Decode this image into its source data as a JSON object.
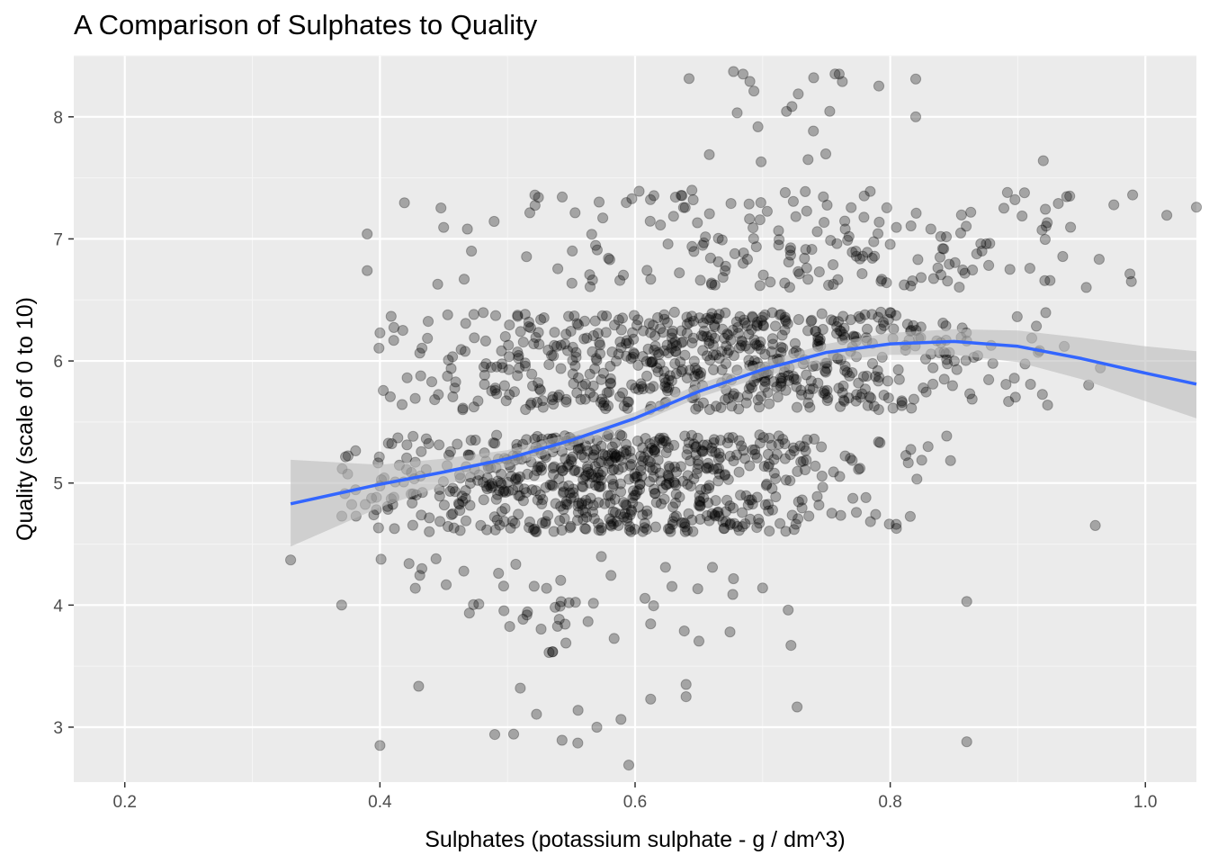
{
  "chart_data": {
    "type": "scatter",
    "title": "A Comparison of Sulphates to Quality",
    "xlabel": "Sulphates (potassium sulphate - g / dm^3)",
    "ylabel": "Quality (scale of 0 to 10)",
    "xlim": [
      0.16,
      1.04
    ],
    "ylim": [
      2.55,
      8.5
    ],
    "x_ticks": [
      0.2,
      0.4,
      0.6,
      0.8,
      1.0
    ],
    "x_tick_labels": [
      "0.2",
      "0.4",
      "0.6",
      "0.8",
      "1.0"
    ],
    "y_ticks": [
      3,
      4,
      5,
      6,
      7,
      8
    ],
    "y_tick_labels": [
      "3",
      "4",
      "5",
      "6",
      "7",
      "8"
    ],
    "grid": true,
    "colors": {
      "panel_background": "#ebebeb",
      "grid_major": "#ffffff",
      "grid_minor": "#f5f5f5",
      "point_fill": "#000000",
      "point_alpha": 0.3,
      "smooth_line": "#3366ff",
      "confidence_band": "#bdbdbd"
    },
    "jitter": {
      "y_amount": 0.4
    },
    "point_groups": [
      {
        "quality": 3,
        "count": 10,
        "x_range": [
          0.4,
          0.86
        ],
        "x_center": 0.56,
        "x_spread": 0.12
      },
      {
        "quality": 4,
        "count": 53,
        "x_range": [
          0.33,
          0.86
        ],
        "x_center": 0.56,
        "x_spread": 0.08
      },
      {
        "quality": 5,
        "count": 681,
        "x_range": [
          0.37,
          1.04
        ],
        "x_center": 0.58,
        "x_spread": 0.1
      },
      {
        "quality": 6,
        "count": 638,
        "x_range": [
          0.39,
          1.04
        ],
        "x_center": 0.65,
        "x_spread": 0.12
      },
      {
        "quality": 7,
        "count": 199,
        "x_range": [
          0.39,
          1.04
        ],
        "x_center": 0.73,
        "x_spread": 0.13
      },
      {
        "quality": 8,
        "count": 18,
        "x_range": [
          0.63,
          0.82
        ],
        "x_center": 0.74,
        "x_spread": 0.06
      }
    ],
    "sample_points": [
      {
        "x": 0.33,
        "y": 4.37
      },
      {
        "x": 0.37,
        "y": 4.0
      },
      {
        "x": 0.39,
        "y": 7.04
      },
      {
        "x": 0.39,
        "y": 6.74
      },
      {
        "x": 0.4,
        "y": 6.23
      },
      {
        "x": 0.4,
        "y": 2.85
      },
      {
        "x": 0.49,
        "y": 2.94
      },
      {
        "x": 0.57,
        "y": 3.0
      },
      {
        "x": 0.86,
        "y": 2.88
      },
      {
        "x": 0.86,
        "y": 4.03
      },
      {
        "x": 0.69,
        "y": 8.29
      },
      {
        "x": 0.74,
        "y": 8.32
      },
      {
        "x": 0.76,
        "y": 8.35
      },
      {
        "x": 0.82,
        "y": 8.31
      },
      {
        "x": 0.82,
        "y": 8.0
      },
      {
        "x": 0.92,
        "y": 7.64
      },
      {
        "x": 0.99,
        "y": 7.36
      },
      {
        "x": 1.04,
        "y": 7.26
      },
      {
        "x": 0.64,
        "y": 3.35
      },
      {
        "x": 0.64,
        "y": 3.25
      },
      {
        "x": 0.51,
        "y": 3.32
      },
      {
        "x": 0.7,
        "y": 4.14
      },
      {
        "x": 0.72,
        "y": 3.96
      }
    ],
    "smooth_curve": [
      {
        "x": 0.33,
        "y": 4.83,
        "ci_lower": 4.48,
        "ci_upper": 5.19
      },
      {
        "x": 0.4,
        "y": 4.99,
        "ci_lower": 4.8,
        "ci_upper": 5.15
      },
      {
        "x": 0.45,
        "y": 5.09,
        "ci_lower": 4.98,
        "ci_upper": 5.2
      },
      {
        "x": 0.5,
        "y": 5.2,
        "ci_lower": 5.13,
        "ci_upper": 5.27
      },
      {
        "x": 0.55,
        "y": 5.35,
        "ci_lower": 5.3,
        "ci_upper": 5.41
      },
      {
        "x": 0.6,
        "y": 5.53,
        "ci_lower": 5.48,
        "ci_upper": 5.58
      },
      {
        "x": 0.65,
        "y": 5.75,
        "ci_lower": 5.7,
        "ci_upper": 5.81
      },
      {
        "x": 0.7,
        "y": 5.93,
        "ci_lower": 5.87,
        "ci_upper": 5.99
      },
      {
        "x": 0.75,
        "y": 6.07,
        "ci_lower": 6.0,
        "ci_upper": 6.14
      },
      {
        "x": 0.8,
        "y": 6.14,
        "ci_lower": 6.05,
        "ci_upper": 6.23
      },
      {
        "x": 0.85,
        "y": 6.16,
        "ci_lower": 6.05,
        "ci_upper": 6.26
      },
      {
        "x": 0.9,
        "y": 6.12,
        "ci_lower": 5.99,
        "ci_upper": 6.25
      },
      {
        "x": 0.95,
        "y": 6.02,
        "ci_lower": 5.85,
        "ci_upper": 6.19
      },
      {
        "x": 1.0,
        "y": 5.9,
        "ci_lower": 5.67,
        "ci_upper": 6.12
      },
      {
        "x": 1.04,
        "y": 5.81,
        "ci_lower": 5.53,
        "ci_upper": 6.08
      }
    ]
  }
}
